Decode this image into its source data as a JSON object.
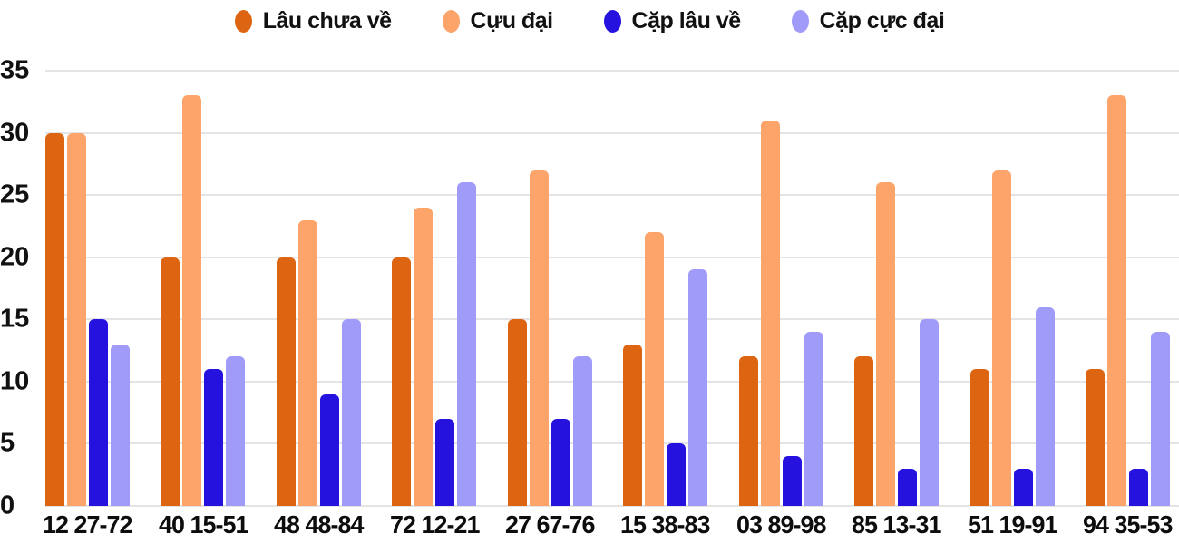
{
  "colors": {
    "background": "#FFFFFF",
    "grid": "#E4E4E4",
    "text": "#111111"
  },
  "chart_data": {
    "type": "bar",
    "title": "",
    "xlabel": "",
    "ylabel": "",
    "ylim": [
      0,
      35
    ],
    "yticks": [
      0,
      5,
      10,
      15,
      20,
      25,
      30,
      35
    ],
    "grid": true,
    "legend_position": "top",
    "categories": [
      "12 27-72",
      "40 15-51",
      "48 48-84",
      "72 12-21",
      "27 67-76",
      "15 38-83",
      "03 89-98",
      "85 13-31",
      "51 19-91",
      "94 35-53"
    ],
    "series": [
      {
        "name": "Lâu chưa về",
        "color": "#DD6512",
        "values": [
          30,
          20,
          20,
          20,
          15,
          13,
          12,
          12,
          11,
          11
        ]
      },
      {
        "name": "Cựu đại",
        "color": "#FCA46A",
        "values": [
          30,
          33,
          23,
          24,
          27,
          22,
          31,
          26,
          27,
          33
        ]
      },
      {
        "name": "Cặp lâu về",
        "color": "#2612DF",
        "values": [
          15,
          11,
          9,
          7,
          7,
          5,
          4,
          3,
          3,
          3
        ]
      },
      {
        "name": "Cặp cực đại",
        "color": "#A09BF8",
        "values": [
          13,
          12,
          15,
          26,
          12,
          19,
          14,
          15,
          16,
          14
        ]
      }
    ]
  }
}
